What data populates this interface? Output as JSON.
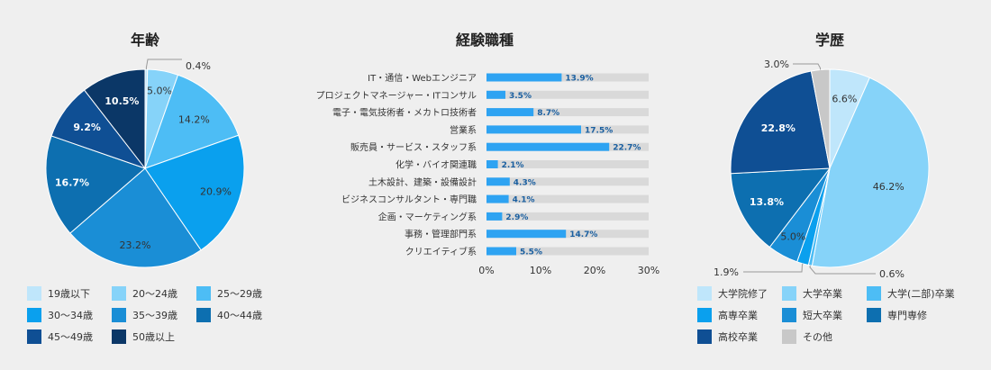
{
  "chart_data": [
    {
      "type": "pie",
      "title": "年齢",
      "categories": [
        "19歳以下",
        "20〜24歳",
        "25〜29歳",
        "30〜34歳",
        "35〜39歳",
        "40〜44歳",
        "45〜49歳",
        "50歳以上"
      ],
      "values": [
        0.4,
        5.0,
        14.2,
        20.9,
        23.2,
        16.7,
        9.2,
        10.5
      ],
      "labels": [
        "0.4%",
        "5.0%",
        "14.2%",
        "20.9%",
        "23.2%",
        "16.7%",
        "9.2%",
        "10.5%"
      ],
      "colors": [
        "#bfe6fb",
        "#86d3f9",
        "#4dbdf5",
        "#0aa0ee",
        "#1a8ed6",
        "#0d6fb0",
        "#0f4f94",
        "#0b3767"
      ]
    },
    {
      "type": "bar",
      "title": "経験職種",
      "categories": [
        "IT・通信・Webエンジニア",
        "プロジェクトマネージャー・ITコンサル",
        "電子・電気技術者・メカトロ技術者",
        "営業系",
        "販売員・サービス・スタッフ系",
        "化学・バイオ関連職",
        "土木設計、建築・設備設計",
        "ビジネスコンサルタント・専門職",
        "企画・マーケティング系",
        "事務・管理部門系",
        "クリエイティブ系"
      ],
      "values": [
        13.9,
        3.5,
        8.7,
        17.5,
        22.7,
        2.1,
        4.3,
        4.1,
        2.9,
        14.7,
        5.5
      ],
      "labels": [
        "13.9%",
        "3.5%",
        "8.7%",
        "17.5%",
        "22.7%",
        "2.1%",
        "4.3%",
        "4.1%",
        "2.9%",
        "14.7%",
        "5.5%"
      ],
      "xlim": [
        0,
        30
      ],
      "xticks": [
        "0%",
        "10%",
        "20%",
        "30%"
      ],
      "bar_color": "#2ea3f2",
      "track_color": "#d9d9d9"
    },
    {
      "type": "pie",
      "title": "学歴",
      "categories": [
        "大学院修了",
        "大学卒業",
        "大学(二部)卒業",
        "高専卒業",
        "短大卒業",
        "専門専修",
        "高校卒業",
        "その他"
      ],
      "values": [
        6.6,
        46.2,
        0.6,
        1.9,
        5.0,
        13.8,
        22.8,
        3.0
      ],
      "labels": [
        "6.6%",
        "46.2%",
        "0.6%",
        "1.9%",
        "5.0%",
        "13.8%",
        "22.8%",
        "3.0%"
      ],
      "colors": [
        "#bfe6fb",
        "#86d3f9",
        "#4dbdf5",
        "#0aa0ee",
        "#1a8ed6",
        "#0d6fb0",
        "#0f4f94",
        "#c8c8c8"
      ]
    }
  ]
}
